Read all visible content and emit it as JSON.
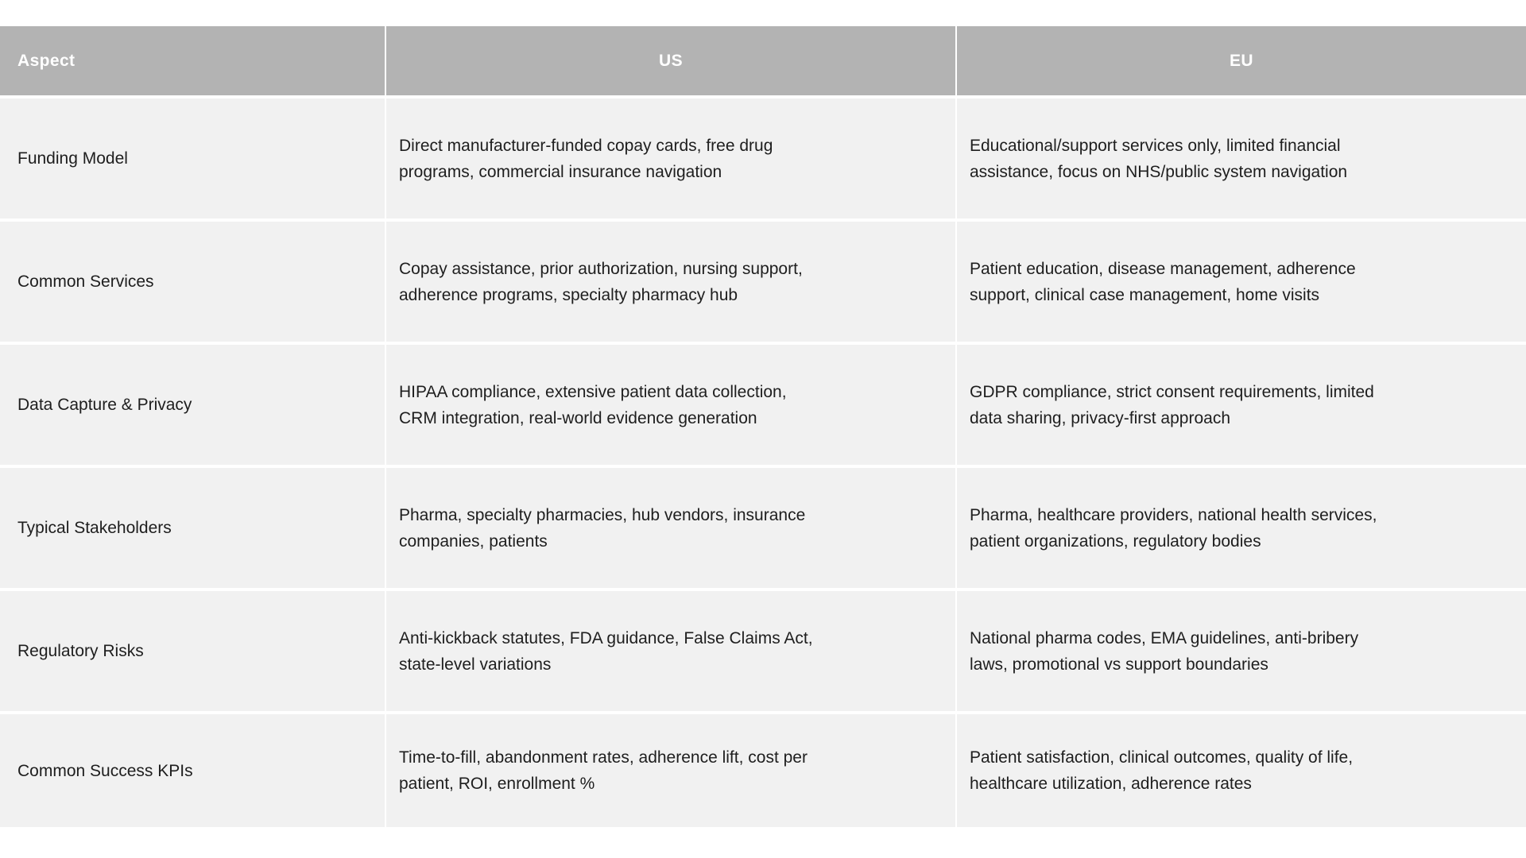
{
  "table": {
    "columns": [
      "Aspect",
      "US",
      "EU"
    ],
    "rows": [
      {
        "aspect": "Funding Model",
        "us": "Direct manufacturer-funded copay cards, free drug\nprograms, commercial insurance navigation",
        "eu": "Educational/support services only, limited financial\nassistance, focus on NHS/public system navigation"
      },
      {
        "aspect": "Common Services",
        "us": "Copay assistance, prior authorization, nursing support,\nadherence programs, specialty pharmacy hub",
        "eu": "Patient education, disease management, adherence\nsupport, clinical case management, home visits"
      },
      {
        "aspect": "Data Capture & Privacy",
        "us": "HIPAA compliance, extensive patient data collection,\nCRM integration, real-world evidence generation",
        "eu": "GDPR compliance, strict consent requirements, limited\ndata sharing, privacy-first approach"
      },
      {
        "aspect": "Typical Stakeholders",
        "us": "Pharma, specialty pharmacies, hub vendors, insurance\ncompanies, patients",
        "eu": "Pharma, healthcare providers, national health services,\npatient organizations, regulatory bodies"
      },
      {
        "aspect": "Regulatory Risks",
        "us": "Anti-kickback statutes, FDA guidance, False Claims Act,\nstate-level variations",
        "eu": "National pharma codes, EMA guidelines, anti-bribery\nlaws, promotional vs support boundaries"
      },
      {
        "aspect": "Common Success KPIs",
        "us": "Time-to-fill, abandonment rates, adherence lift, cost per\npatient, ROI, enrollment %",
        "eu": "Patient satisfaction, clinical outcomes, quality of life,\nhealthcare utilization, adherence rates"
      }
    ]
  },
  "colors": {
    "page_bg": "#ffffff",
    "header_bg": "#b3b3b3",
    "header_text": "#ffffff",
    "row_bg": "#f1f1f1",
    "body_text": "#1e1e1e"
  }
}
